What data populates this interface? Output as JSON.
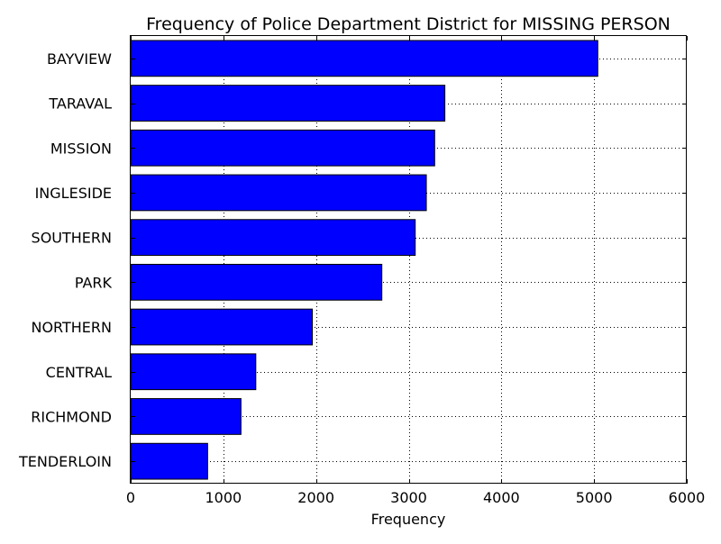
{
  "chart_data": {
    "type": "bar",
    "orientation": "horizontal",
    "title": "Frequency of Police Department District for MISSING PERSON",
    "xlabel": "Frequency",
    "ylabel": "",
    "categories": [
      "BAYVIEW",
      "TARAVAL",
      "MISSION",
      "INGLESIDE",
      "SOUTHERN",
      "PARK",
      "NORTHERN",
      "CENTRAL",
      "RICHMOND",
      "TENDERLOIN"
    ],
    "values": [
      5040,
      3390,
      3280,
      3190,
      3070,
      2710,
      1960,
      1350,
      1190,
      830
    ],
    "xlim": [
      0,
      6000
    ],
    "xticks": [
      "0",
      "1000",
      "2000",
      "3000",
      "4000",
      "5000",
      "6000"
    ],
    "grid": true,
    "bar_color": "#0000ff",
    "edge_color": "#000000"
  }
}
